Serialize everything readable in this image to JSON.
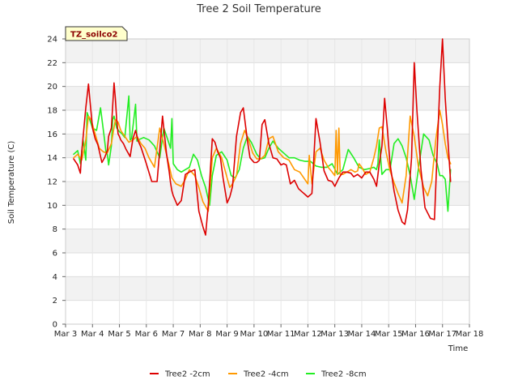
{
  "chart_data": {
    "type": "line",
    "title": "Tree 2 Soil Temperature",
    "xlabel": "Time",
    "ylabel": "Soil Temperature (C)",
    "badge": "TZ_soilco2",
    "ylim": [
      0,
      24
    ],
    "yticks": [
      0,
      2,
      4,
      6,
      8,
      10,
      12,
      14,
      16,
      18,
      20,
      22,
      24
    ],
    "xlim": [
      3,
      18
    ],
    "xticks": [
      {
        "value": 3,
        "label": "Mar 3"
      },
      {
        "value": 4,
        "label": "Mar 4"
      },
      {
        "value": 5,
        "label": "Mar 5"
      },
      {
        "value": 6,
        "label": "Mar 6"
      },
      {
        "value": 7,
        "label": "Mar 7"
      },
      {
        "value": 8,
        "label": "Mar 8"
      },
      {
        "value": 9,
        "label": "Mar 9"
      },
      {
        "value": 10,
        "label": "Mar 10"
      },
      {
        "value": 11,
        "label": "Mar 11"
      },
      {
        "value": 12,
        "label": "Mar 12"
      },
      {
        "value": 13,
        "label": "Mar 13"
      },
      {
        "value": 14,
        "label": "Mar 14"
      },
      {
        "value": 15,
        "label": "Mar 15"
      },
      {
        "value": 16,
        "label": "Mar 16"
      },
      {
        "value": 17,
        "label": "Mar 17"
      },
      {
        "value": 18,
        "label": "Mar 18"
      }
    ],
    "grid": true,
    "legend_position": "bottom",
    "series": [
      {
        "name": "Tree2 -2cm",
        "color": "#dd0000",
        "x": [
          3.3,
          3.45,
          3.55,
          3.6,
          3.75,
          3.85,
          3.9,
          4.0,
          4.1,
          4.2,
          4.35,
          4.45,
          4.55,
          4.6,
          4.7,
          4.8,
          4.85,
          4.9,
          4.95,
          5.0,
          5.05,
          5.15,
          5.25,
          5.4,
          5.5,
          5.6,
          5.7,
          5.8,
          5.9,
          6.0,
          6.2,
          6.4,
          6.6,
          6.75,
          6.85,
          6.9,
          6.95,
          7.0,
          7.15,
          7.3,
          7.45,
          7.6,
          7.8,
          7.95,
          8.1,
          8.2,
          8.3,
          8.45,
          8.55,
          8.65,
          8.75,
          8.85,
          9.0,
          9.1,
          9.2,
          9.35,
          9.5,
          9.6,
          9.75,
          9.85,
          10.0,
          10.1,
          10.2,
          10.3,
          10.4,
          10.55,
          10.7,
          10.85,
          11.0,
          11.1,
          11.2,
          11.35,
          11.5,
          11.65,
          11.8,
          11.9,
          12.0,
          12.15,
          12.3,
          12.45,
          12.6,
          12.75,
          12.9,
          13.0,
          13.15,
          13.3,
          13.45,
          13.6,
          13.7,
          13.85,
          14.0,
          14.15,
          14.3,
          14.45,
          14.55,
          14.65,
          14.75,
          14.85,
          14.95,
          15.05,
          15.2,
          15.35,
          15.5,
          15.6,
          15.7,
          15.85,
          15.95,
          16.05,
          16.2,
          16.35,
          16.55,
          16.7,
          16.8,
          16.9,
          17.0,
          17.1,
          17.2,
          17.3
        ],
        "y": [
          13.9,
          13.4,
          12.7,
          14.5,
          18.2,
          20.2,
          19.0,
          16.5,
          15.6,
          15.1,
          13.6,
          14.0,
          14.6,
          15.8,
          16.5,
          20.3,
          19.0,
          17.2,
          16.0,
          15.8,
          15.5,
          15.2,
          14.7,
          14.1,
          15.6,
          16.3,
          15.4,
          14.9,
          14.2,
          13.5,
          12.0,
          12.0,
          17.5,
          14.3,
          12.8,
          11.9,
          11.2,
          10.8,
          10.0,
          10.4,
          12.6,
          12.8,
          13.0,
          9.5,
          8.2,
          7.5,
          10.0,
          15.6,
          15.3,
          14.5,
          14.0,
          12.3,
          10.2,
          10.7,
          11.6,
          15.8,
          17.8,
          18.2,
          15.5,
          14.0,
          13.6,
          13.6,
          13.8,
          16.8,
          17.2,
          15.2,
          14.0,
          13.9,
          13.4,
          13.5,
          13.4,
          11.8,
          12.1,
          11.4,
          11.1,
          10.9,
          10.7,
          11.0,
          17.3,
          15.3,
          12.9,
          12.1,
          12.0,
          11.6,
          12.3,
          12.8,
          12.8,
          12.7,
          12.4,
          12.6,
          12.3,
          12.8,
          12.8,
          12.2,
          11.6,
          13.5,
          15.0,
          19.0,
          16.5,
          13.5,
          11.2,
          9.6,
          8.6,
          8.4,
          9.6,
          14.0,
          22.0,
          18.0,
          13.0,
          9.8,
          8.9,
          8.8,
          14.5,
          20.0,
          24.0,
          19.0,
          15.5,
          12.0
        ]
      },
      {
        "name": "Tree2 -4cm",
        "color": "#ff9900",
        "x": [
          3.3,
          3.45,
          3.6,
          3.75,
          3.85,
          3.95,
          4.1,
          4.25,
          4.4,
          4.55,
          4.7,
          4.85,
          4.95,
          5.05,
          5.2,
          5.35,
          5.5,
          5.65,
          5.8,
          5.95,
          6.1,
          6.3,
          6.5,
          6.65,
          6.8,
          6.95,
          7.1,
          7.3,
          7.45,
          7.6,
          7.8,
          7.95,
          8.1,
          8.3,
          8.45,
          8.6,
          8.8,
          9.0,
          9.1,
          9.2,
          9.35,
          9.5,
          9.65,
          9.8,
          9.95,
          10.1,
          10.25,
          10.4,
          10.55,
          10.7,
          10.9,
          11.1,
          11.3,
          11.5,
          11.7,
          11.85,
          12.0,
          12.05,
          12.15,
          12.3,
          12.45,
          12.6,
          12.75,
          12.9,
          13.0,
          13.05,
          13.1,
          13.15,
          13.2,
          13.3,
          13.45,
          13.6,
          13.75,
          13.85,
          13.9,
          14.0,
          14.15,
          14.3,
          14.45,
          14.55,
          14.65,
          14.75,
          14.9,
          15.05,
          15.2,
          15.35,
          15.5,
          15.65,
          15.8,
          15.95,
          16.1,
          16.3,
          16.45,
          16.6,
          16.75,
          16.9,
          17.0,
          17.1,
          17.2,
          17.3
        ],
        "y": [
          14.0,
          14.3,
          13.8,
          15.5,
          17.5,
          17.2,
          16.0,
          14.8,
          14.5,
          14.4,
          15.2,
          17.2,
          17.0,
          16.3,
          15.8,
          15.3,
          15.5,
          15.8,
          15.2,
          14.8,
          14.0,
          13.2,
          16.5,
          15.2,
          13.8,
          12.3,
          11.8,
          11.6,
          12.2,
          13.0,
          12.5,
          11.5,
          10.3,
          9.5,
          14.0,
          14.8,
          14.0,
          12.3,
          11.5,
          11.8,
          12.5,
          15.2,
          16.3,
          15.5,
          14.4,
          13.9,
          13.9,
          14.2,
          15.6,
          15.8,
          14.5,
          14.0,
          13.8,
          13.0,
          12.8,
          12.3,
          11.8,
          14.2,
          11.8,
          14.5,
          14.8,
          13.8,
          13.2,
          12.8,
          12.5,
          16.3,
          12.6,
          16.5,
          12.6,
          12.6,
          12.8,
          13.0,
          12.8,
          12.9,
          13.5,
          13.2,
          12.6,
          12.8,
          14.0,
          15.0,
          16.5,
          16.6,
          14.5,
          12.9,
          11.9,
          11.0,
          10.2,
          12.5,
          17.5,
          15.8,
          13.3,
          11.5,
          10.8,
          12.0,
          15.5,
          18.0,
          16.8,
          15.2,
          14.0,
          13.5
        ]
      },
      {
        "name": "Tree2 -8cm",
        "color": "#22ee22",
        "x": [
          3.3,
          3.45,
          3.55,
          3.65,
          3.75,
          3.8,
          3.9,
          4.0,
          4.15,
          4.3,
          4.45,
          4.5,
          4.55,
          4.6,
          4.7,
          4.75,
          4.8,
          4.9,
          5.0,
          5.1,
          5.2,
          5.35,
          5.4,
          5.45,
          5.6,
          5.65,
          5.7,
          5.8,
          5.9,
          6.1,
          6.3,
          6.5,
          6.65,
          6.8,
          6.9,
          6.95,
          7.0,
          7.15,
          7.3,
          7.45,
          7.6,
          7.75,
          7.9,
          8.05,
          8.2,
          8.35,
          8.45,
          8.6,
          8.8,
          9.0,
          9.15,
          9.3,
          9.45,
          9.6,
          9.75,
          9.9,
          10.1,
          10.25,
          10.4,
          10.55,
          10.7,
          10.9,
          11.1,
          11.3,
          11.5,
          11.7,
          11.9,
          12.1,
          12.3,
          12.5,
          12.7,
          12.9,
          13.1,
          13.3,
          13.5,
          13.7,
          13.9,
          14.1,
          14.3,
          14.45,
          14.55,
          14.6,
          14.65,
          14.75,
          14.9,
          15.05,
          15.2,
          15.35,
          15.5,
          15.65,
          15.8,
          15.95,
          16.1,
          16.3,
          16.5,
          16.65,
          16.8,
          16.9,
          17.0,
          17.1,
          17.2,
          17.3
        ],
        "y": [
          14.3,
          14.6,
          13.5,
          15.5,
          13.8,
          17.8,
          17.2,
          16.5,
          16.3,
          18.2,
          15.5,
          14.5,
          14.3,
          13.4,
          15.0,
          17.2,
          17.5,
          16.5,
          16.2,
          16.0,
          15.7,
          19.2,
          15.5,
          15.6,
          18.5,
          15.4,
          15.5,
          15.6,
          15.7,
          15.5,
          15.0,
          14.0,
          16.5,
          15.5,
          14.8,
          17.3,
          13.5,
          13.0,
          12.8,
          13.0,
          13.2,
          14.3,
          13.8,
          12.5,
          11.5,
          10.0,
          12.5,
          14.2,
          14.5,
          13.8,
          12.5,
          12.3,
          13.0,
          14.8,
          15.8,
          15.3,
          14.3,
          13.9,
          14.0,
          14.8,
          15.4,
          14.8,
          14.4,
          14.0,
          14.0,
          13.8,
          13.7,
          13.7,
          13.3,
          13.2,
          13.2,
          13.5,
          12.6,
          13.0,
          14.7,
          14.0,
          13.2,
          13.0,
          13.1,
          13.2,
          13.0,
          13.5,
          15.5,
          12.6,
          13.0,
          13.0,
          15.2,
          15.6,
          15.0,
          14.0,
          12.5,
          10.5,
          13.0,
          16.0,
          15.5,
          14.2,
          13.5,
          12.5,
          12.5,
          12.2,
          9.5,
          13.0
        ]
      }
    ]
  }
}
